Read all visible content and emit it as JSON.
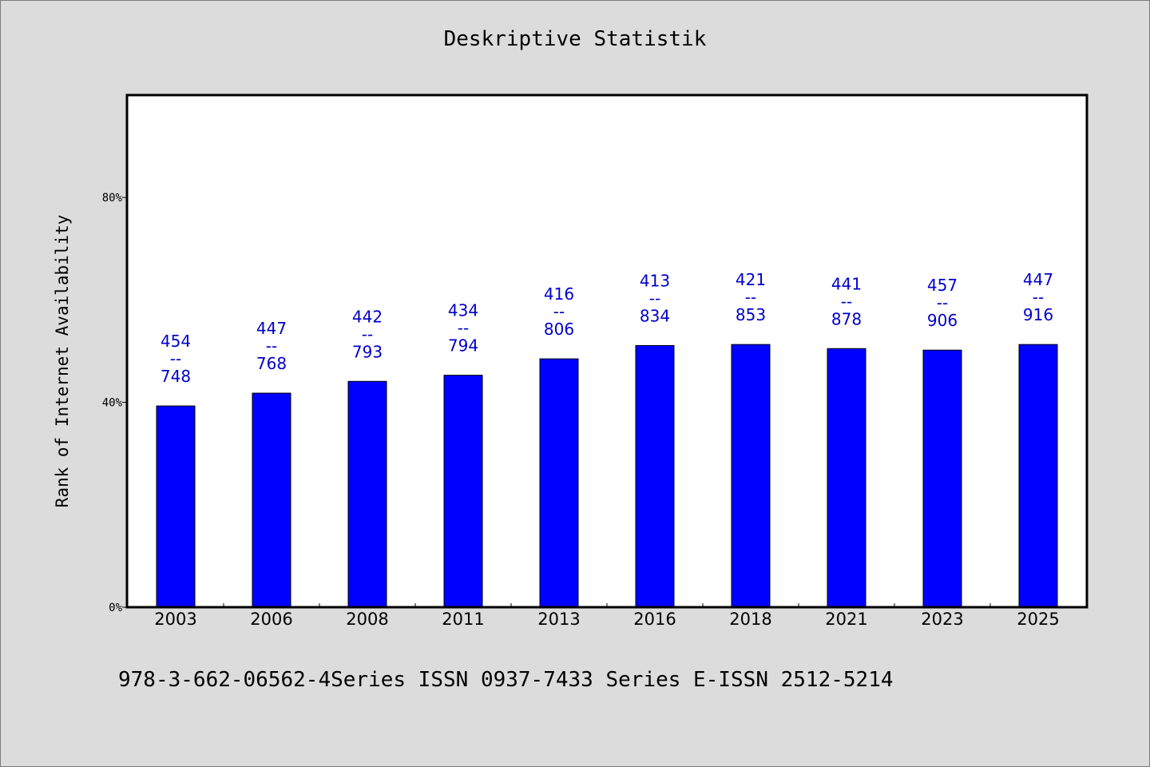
{
  "page": {
    "footer_text": "978-3-662-06562-4Series ISSN 0937-7433 Series E-ISSN 2512-5214"
  },
  "colors": {
    "background": "#dcdcdc",
    "plot_background": "#ffffff",
    "bar": "#0000ff",
    "bar_label": "#0000cc"
  },
  "chart_data": {
    "type": "bar",
    "title": "Deskriptive Statistik",
    "xlabel": "",
    "ylabel": "Rank of Internet Availability",
    "ylim": [
      0,
      1.0
    ],
    "yticks": [
      {
        "value": 0,
        "label": "0%"
      },
      {
        "value": 0.4,
        "label": "40%"
      },
      {
        "value": 0.8,
        "label": "80%"
      }
    ],
    "grid": false,
    "categories": [
      "2003",
      "2006",
      "2008",
      "2011",
      "2013",
      "2016",
      "2018",
      "2021",
      "2023",
      "2025"
    ],
    "values": [
      0.393,
      0.418,
      0.441,
      0.453,
      0.485,
      0.511,
      0.513,
      0.505,
      0.502,
      0.513
    ],
    "bar_labels": [
      {
        "top": "454",
        "sep": "--",
        "bottom": "748"
      },
      {
        "top": "447",
        "sep": "--",
        "bottom": "768"
      },
      {
        "top": "442",
        "sep": "--",
        "bottom": "793"
      },
      {
        "top": "434",
        "sep": "--",
        "bottom": "794"
      },
      {
        "top": "416",
        "sep": "--",
        "bottom": "806"
      },
      {
        "top": "413",
        "sep": "--",
        "bottom": "834"
      },
      {
        "top": "421",
        "sep": "--",
        "bottom": "853"
      },
      {
        "top": "441",
        "sep": "--",
        "bottom": "878"
      },
      {
        "top": "457",
        "sep": "--",
        "bottom": "906"
      },
      {
        "top": "447",
        "sep": "--",
        "bottom": "916"
      }
    ]
  }
}
